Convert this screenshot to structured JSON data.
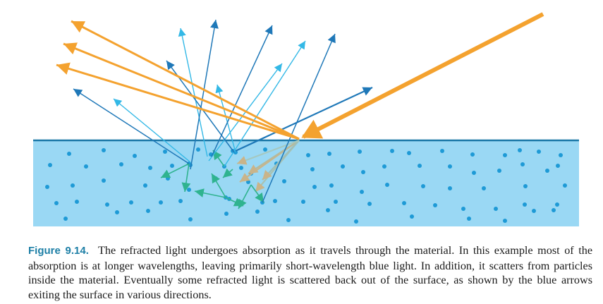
{
  "figure": {
    "label": "Figure 9.14.",
    "caption": "The refracted light undergoes absorption as it travels through the material. In this example most of the absorption is at longer wavelengths, leaving primarily short-wavelength blue light. In addition, it scatters from particles inside the material. Eventually some refracted light is scattered back out of the surface, as shown by the blue arrows exiting the surface in various directions."
  },
  "colors": {
    "incident": "#f4a22f",
    "dark_blue": "#1f78b8",
    "light_blue": "#33b8e6",
    "teal": "#2fb38f",
    "medium_fill": "#9ad8f4",
    "surface_line": "#1876a6",
    "particle": "#1e9ad6"
  }
}
